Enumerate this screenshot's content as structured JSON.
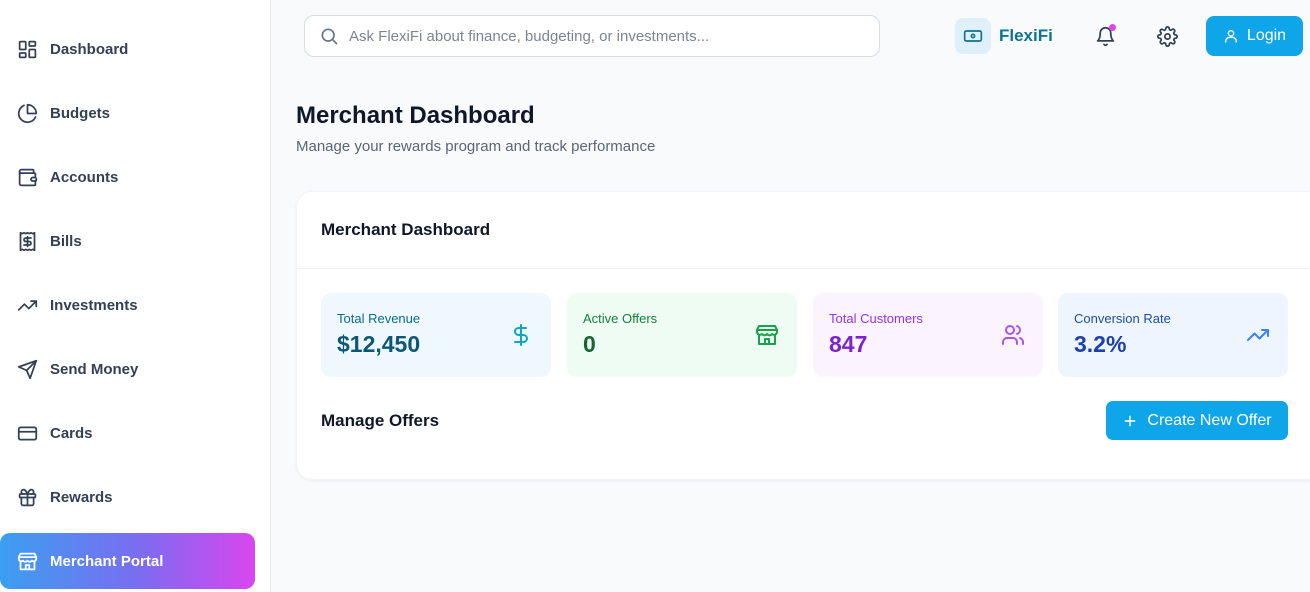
{
  "sidebar": {
    "items": [
      {
        "label": "Dashboard",
        "icon": "layout-grid-icon"
      },
      {
        "label": "Budgets",
        "icon": "pie-chart-icon"
      },
      {
        "label": "Accounts",
        "icon": "wallet-icon"
      },
      {
        "label": "Bills",
        "icon": "receipt-icon"
      },
      {
        "label": "Investments",
        "icon": "trending-up-icon"
      },
      {
        "label": "Send Money",
        "icon": "send-icon"
      },
      {
        "label": "Cards",
        "icon": "credit-card-icon"
      },
      {
        "label": "Rewards",
        "icon": "gift-icon"
      },
      {
        "label": "Merchant Portal",
        "icon": "store-icon",
        "active": true
      }
    ]
  },
  "header": {
    "search_placeholder": "Ask FlexiFi about finance, budgeting, or investments...",
    "brand_name": "FlexiFi",
    "login_label": "Login"
  },
  "page": {
    "title": "Merchant Dashboard",
    "subtitle": "Manage your rewards program and track performance"
  },
  "card": {
    "title": "Merchant Dashboard",
    "stats": [
      {
        "label": "Total Revenue",
        "value": "$12,450",
        "icon": "dollar-icon",
        "bg": "#eff8fe",
        "label_color": "#0b6a8c",
        "value_color": "#0b5876",
        "icon_color": "#0ea5c6"
      },
      {
        "label": "Active Offers",
        "value": "0",
        "icon": "store-icon",
        "bg": "#eefcf3",
        "label_color": "#15803d",
        "value_color": "#166534",
        "icon_color": "#16a34a"
      },
      {
        "label": "Total Customers",
        "value": "847",
        "icon": "users-icon",
        "bg": "#fbf4fe",
        "label_color": "#9333ea",
        "value_color": "#7e22ce",
        "icon_color": "#a855f7"
      },
      {
        "label": "Conversion Rate",
        "value": "3.2%",
        "icon": "trending-up-icon",
        "bg": "#eef5fe",
        "label_color": "#1e4fa3",
        "value_color": "#1e40af",
        "icon_color": "#3b82f6"
      }
    ],
    "manage_title": "Manage Offers",
    "create_label": "Create New Offer"
  },
  "colors": {
    "accent": "#0ea5e9",
    "brand": "#0e7490",
    "notification_dot": "#d946ef"
  }
}
